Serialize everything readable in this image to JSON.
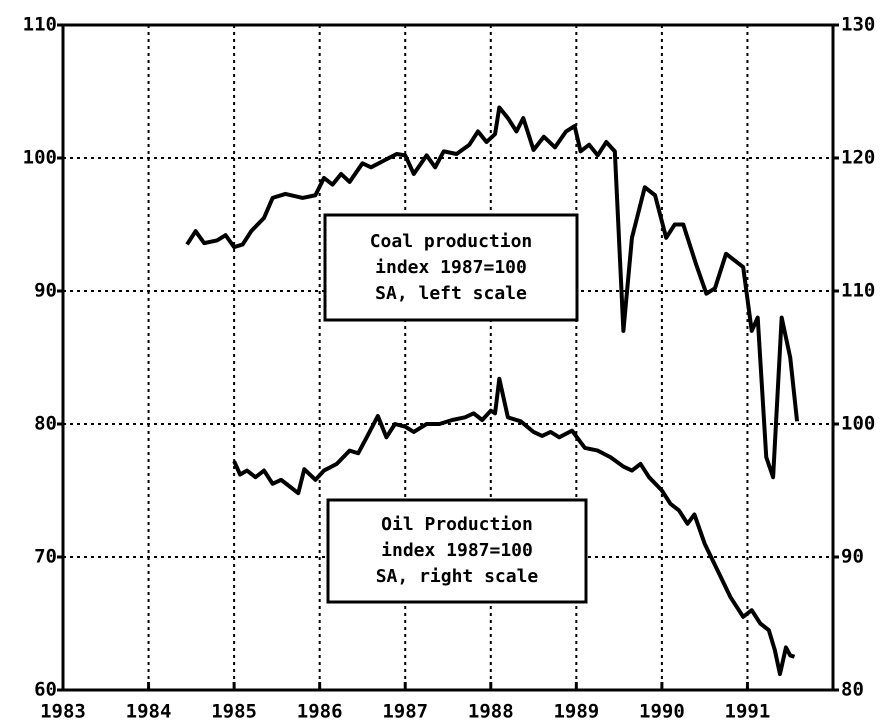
{
  "chart_data": {
    "type": "line",
    "xlim": [
      1983,
      1992
    ],
    "xticks": [
      1983,
      1984,
      1985,
      1986,
      1987,
      1988,
      1989,
      1990,
      1991
    ],
    "ylim": [
      60,
      110
    ],
    "yticks": [
      60,
      70,
      80,
      90,
      100,
      110
    ],
    "y2lim": [
      80,
      130
    ],
    "y2ticks": [
      80,
      90,
      100,
      110,
      120,
      130
    ],
    "grid": true,
    "annotations": [
      {
        "lines": [
          "Coal production",
          "index 1987=100",
          "SA, left scale"
        ]
      },
      {
        "lines": [
          "Oil Production",
          "index 1987=100",
          "SA, right scale"
        ]
      }
    ],
    "series": [
      {
        "color": "#000000",
        "axis": "y",
        "x": [
          1984.45,
          1984.55,
          1984.65,
          1984.8,
          1984.9,
          1985.0,
          1985.1,
          1985.2,
          1985.35,
          1985.45,
          1985.6,
          1985.8,
          1985.95,
          1986.05,
          1986.15,
          1986.25,
          1986.35,
          1986.5,
          1986.6,
          1986.75,
          1986.9,
          1987.0,
          1987.1,
          1987.25,
          1987.35,
          1987.45,
          1987.6,
          1987.75,
          1987.85,
          1987.95,
          1988.05,
          1988.1,
          1988.2,
          1988.3,
          1988.38,
          1988.5,
          1988.62,
          1988.75,
          1988.88,
          1988.98,
          1989.05,
          1989.15,
          1989.25,
          1989.35,
          1989.45,
          1989.55,
          1989.65,
          1989.8,
          1989.92,
          1990.05,
          1990.15,
          1990.25,
          1990.4,
          1990.52,
          1990.62,
          1990.75,
          1990.85,
          1990.95,
          1991.05,
          1991.12,
          1991.22,
          1991.3,
          1991.4,
          1991.5,
          1991.58
        ],
        "values": [
          93.5,
          94.5,
          93.6,
          93.8,
          94.2,
          93.3,
          93.5,
          94.5,
          95.5,
          97.0,
          97.3,
          97.0,
          97.2,
          98.5,
          98.0,
          98.8,
          98.2,
          99.6,
          99.3,
          99.8,
          100.3,
          100.2,
          98.8,
          100.2,
          99.3,
          100.5,
          100.3,
          101.0,
          102.0,
          101.2,
          101.8,
          103.8,
          103.0,
          102.0,
          103.0,
          100.6,
          101.6,
          100.8,
          102.0,
          102.4,
          100.5,
          101.0,
          100.2,
          101.2,
          100.5,
          87.0,
          94.0,
          97.8,
          97.2,
          94.0,
          95.0,
          95.0,
          92.0,
          89.8,
          90.2,
          92.8,
          92.3,
          91.8,
          87.0,
          88.0,
          77.5,
          76.0,
          88.0,
          85.0,
          80.2
        ]
      },
      {
        "color": "#000000",
        "axis": "y2",
        "x": [
          1985.0,
          1985.07,
          1985.15,
          1985.25,
          1985.35,
          1985.45,
          1985.55,
          1985.65,
          1985.75,
          1985.82,
          1985.95,
          1986.05,
          1986.2,
          1986.35,
          1986.45,
          1986.55,
          1986.68,
          1986.78,
          1986.88,
          1987.0,
          1987.1,
          1987.25,
          1987.4,
          1987.55,
          1987.7,
          1987.8,
          1987.9,
          1988.0,
          1988.05,
          1988.1,
          1988.2,
          1988.35,
          1988.5,
          1988.6,
          1988.7,
          1988.8,
          1988.95,
          1989.1,
          1989.25,
          1989.4,
          1989.55,
          1989.65,
          1989.75,
          1989.85,
          1990.0,
          1990.1,
          1990.2,
          1990.3,
          1990.38,
          1990.5,
          1990.65,
          1990.8,
          1990.95,
          1991.05,
          1991.15,
          1991.25,
          1991.32,
          1991.38,
          1991.45,
          1991.5,
          1991.55
        ],
        "values": [
          97.2,
          96.2,
          96.5,
          96.0,
          96.5,
          95.5,
          95.8,
          95.3,
          94.8,
          96.6,
          95.8,
          96.5,
          97.0,
          98.0,
          97.8,
          99.0,
          100.6,
          99.0,
          100.0,
          99.8,
          99.4,
          100.0,
          100.0,
          100.3,
          100.5,
          100.8,
          100.3,
          101.0,
          100.8,
          103.4,
          100.5,
          100.2,
          99.4,
          99.1,
          99.4,
          99.0,
          99.5,
          98.2,
          98.0,
          97.5,
          96.8,
          96.5,
          97.0,
          96.0,
          95.0,
          94.0,
          93.5,
          92.5,
          93.2,
          91.0,
          89.0,
          87.0,
          85.5,
          86.0,
          85.0,
          84.5,
          83.0,
          81.2,
          83.2,
          82.6,
          82.5
        ]
      }
    ]
  }
}
